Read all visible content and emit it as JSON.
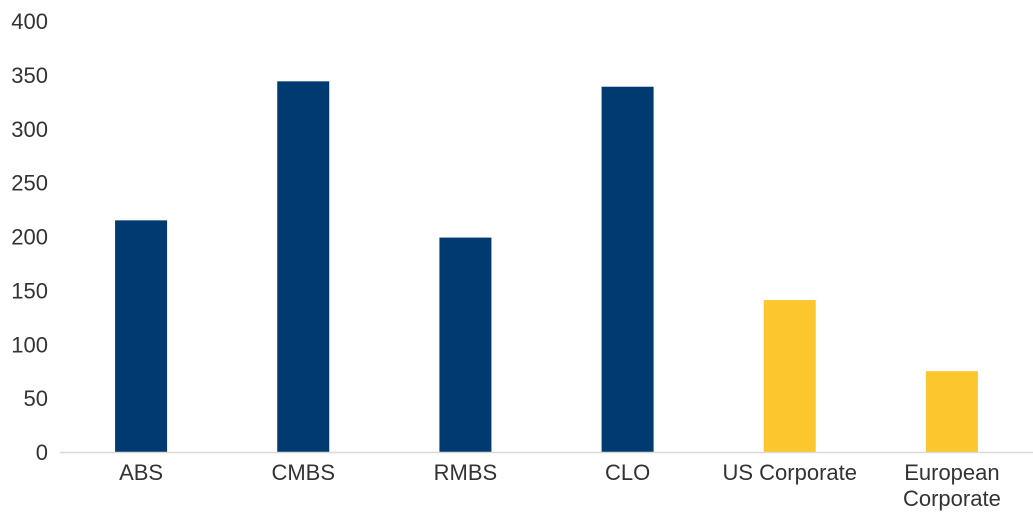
{
  "chart_data": {
    "type": "bar",
    "categories": [
      "ABS",
      "CMBS",
      "RMBS",
      "CLO",
      "US Corporate",
      "European Corporate"
    ],
    "category_lines": [
      [
        "ABS"
      ],
      [
        "CMBS"
      ],
      [
        "RMBS"
      ],
      [
        "CLO"
      ],
      [
        "US Corporate"
      ],
      [
        "European",
        "Corporate"
      ]
    ],
    "values": [
      215,
      344,
      199,
      339,
      141,
      75
    ],
    "bar_colors": [
      "#003a70",
      "#003a70",
      "#003a70",
      "#003a70",
      "#fcc62d",
      "#fcc62d"
    ],
    "ylim": [
      0,
      400
    ],
    "yticks": [
      0,
      50,
      100,
      150,
      200,
      250,
      300,
      350,
      400
    ],
    "grid": false,
    "title": "",
    "xlabel": "",
    "ylabel": ""
  },
  "colors": {
    "primary_bar": "#003a70",
    "highlight_bar": "#fcc62d",
    "axis_line": "#d9d9d9",
    "text": "#333333"
  }
}
